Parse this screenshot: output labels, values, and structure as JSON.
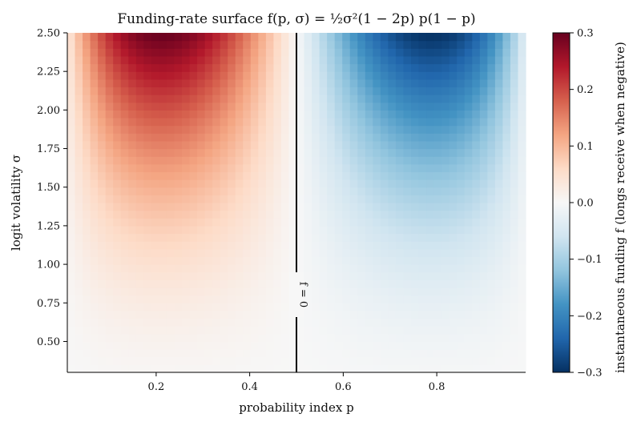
{
  "chart_data": {
    "type": "heatmap",
    "title": "Funding-rate surface f(p, σ) = ½σ²(1 − 2p) p(1 − p)",
    "xlabel": "probability index p",
    "ylabel": "logit volatility σ",
    "colorbar_label": "instantaneous funding f (longs receive when negative)",
    "formula": "f = 0.5 * sigma^2 * (1 - 2p) * p * (1 - p)",
    "x_range": [
      0.01,
      0.99
    ],
    "y_range": [
      0.3,
      2.5
    ],
    "grid_nx": 60,
    "grid_ny": 44,
    "x_ticks": [
      "0.2",
      "0.4",
      "0.6",
      "0.8"
    ],
    "x_tick_values": [
      0.2,
      0.4,
      0.6,
      0.8
    ],
    "y_ticks": [
      "0.50",
      "0.75",
      "1.00",
      "1.25",
      "1.50",
      "1.75",
      "2.00",
      "2.25",
      "2.50"
    ],
    "y_tick_values": [
      0.5,
      0.75,
      1.0,
      1.25,
      1.5,
      1.75,
      2.0,
      2.25,
      2.5
    ],
    "color_range": [
      -0.3,
      0.3
    ],
    "colormap": "RdBu_r",
    "colorbar_ticks": [
      "0.3",
      "0.2",
      "0.1",
      "0.0",
      "−0.1",
      "−0.2",
      "−0.3"
    ],
    "colorbar_tick_values": [
      0.3,
      0.2,
      0.1,
      0.0,
      -0.1,
      -0.2,
      -0.3
    ],
    "contour": {
      "label": "f = 0",
      "p": 0.5
    },
    "colors": {
      "rd_dark": "#67001f",
      "rd_mid": "#d6604d",
      "neutral": "#f7f7f7",
      "bu_mid": "#4393c3",
      "bu_dark": "#053061"
    }
  }
}
